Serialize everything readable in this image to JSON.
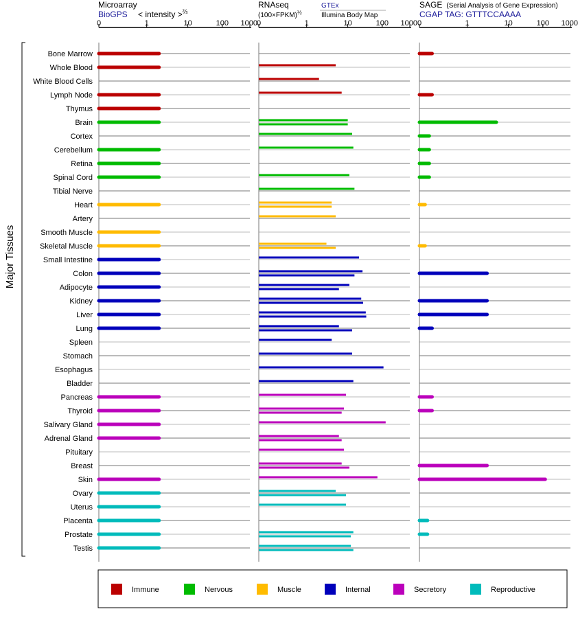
{
  "header": {
    "microarray": {
      "title": "Microarray",
      "source": "BioGPS",
      "scale_label": "< intensity >",
      "scale_exp": "⅔"
    },
    "rnaseq": {
      "title": "RNAseq",
      "unit": "(100×FPKM)",
      "unit_exp": "½",
      "source_a": "GTEx",
      "source_b": "Illumina Body Map"
    },
    "sage": {
      "title": "SAGE",
      "subtitle": "(Serial Analysis of Gene Expression)",
      "tag": "CGAP TAG: GTTTCCAAAA"
    }
  },
  "axis_ticks": [
    "0",
    "1",
    "10",
    "100",
    "1000"
  ],
  "y_group_label": "Major Tissues",
  "colors": {
    "Immune": "#bb0000",
    "Nervous": "#00bb00",
    "Muscle": "#ffbb00",
    "Internal": "#0000bb",
    "Secretory": "#bb00bb",
    "Reproductive": "#00bbbb"
  },
  "legend": [
    "Immune",
    "Nervous",
    "Muscle",
    "Internal",
    "Secretory",
    "Reproductive"
  ],
  "chart_data": {
    "type": "bar",
    "scale": "sqrt-log (0, 1, 10, 100, 1000)",
    "panels": [
      "Microarray",
      "RNAseq",
      "SAGE"
    ],
    "tissues": [
      {
        "name": "Bone Marrow",
        "system": "Immune",
        "microarray": 2,
        "rnaseq": [],
        "sage": 0.05
      },
      {
        "name": "Whole Blood",
        "system": "Immune",
        "microarray": 2,
        "rnaseq": [
          5
        ],
        "sage": null
      },
      {
        "name": "White Blood Cells",
        "system": "Immune",
        "microarray": null,
        "rnaseq": [
          2
        ],
        "sage": null
      },
      {
        "name": "Lymph Node",
        "system": "Immune",
        "microarray": 2,
        "rnaseq": [
          7
        ],
        "sage": 0.05
      },
      {
        "name": "Thymus",
        "system": "Immune",
        "microarray": 2,
        "rnaseq": [],
        "sage": null
      },
      {
        "name": "Brain",
        "system": "Nervous",
        "microarray": 2,
        "rnaseq": [
          10,
          10
        ],
        "sage": 5
      },
      {
        "name": "Cortex",
        "system": "Nervous",
        "microarray": null,
        "rnaseq": [
          13
        ],
        "sage": 0.03
      },
      {
        "name": "Cerebellum",
        "system": "Nervous",
        "microarray": 2,
        "rnaseq": [
          14
        ],
        "sage": 0.03
      },
      {
        "name": "Retina",
        "system": "Nervous",
        "microarray": 2,
        "rnaseq": [],
        "sage": 0.03
      },
      {
        "name": "Spinal Cord",
        "system": "Nervous",
        "microarray": 2,
        "rnaseq": [
          11
        ],
        "sage": 0.03
      },
      {
        "name": "Tibial Nerve",
        "system": "Nervous",
        "microarray": null,
        "rnaseq": [
          15
        ],
        "sage": null
      },
      {
        "name": "Heart",
        "system": "Muscle",
        "microarray": 2,
        "rnaseq": [
          4,
          4
        ],
        "sage": 0.01
      },
      {
        "name": "Artery",
        "system": "Muscle",
        "microarray": null,
        "rnaseq": [
          5
        ],
        "sage": null
      },
      {
        "name": "Smooth Muscle",
        "system": "Muscle",
        "microarray": 2,
        "rnaseq": [],
        "sage": null
      },
      {
        "name": "Skeletal Muscle",
        "system": "Muscle",
        "microarray": 2,
        "rnaseq": [
          3,
          5
        ],
        "sage": 0.01
      },
      {
        "name": "Small Intestine",
        "system": "Internal",
        "microarray": 2,
        "rnaseq": [
          20
        ],
        "sage": null
      },
      {
        "name": "Colon",
        "system": "Internal",
        "microarray": 2,
        "rnaseq": [
          25,
          15
        ],
        "sage": 3
      },
      {
        "name": "Adipocyte",
        "system": "Internal",
        "microarray": 2,
        "rnaseq": [
          11,
          6
        ],
        "sage": null
      },
      {
        "name": "Kidney",
        "system": "Internal",
        "microarray": 2,
        "rnaseq": [
          23,
          26
        ],
        "sage": 3
      },
      {
        "name": "Liver",
        "system": "Internal",
        "microarray": 2,
        "rnaseq": [
          31,
          32
        ],
        "sage": 3
      },
      {
        "name": "Lung",
        "system": "Internal",
        "microarray": 2,
        "rnaseq": [
          6,
          13
        ],
        "sage": 0.05
      },
      {
        "name": "Spleen",
        "system": "Internal",
        "microarray": null,
        "rnaseq": [
          4
        ],
        "sage": null
      },
      {
        "name": "Stomach",
        "system": "Internal",
        "microarray": null,
        "rnaseq": [
          13
        ],
        "sage": null
      },
      {
        "name": "Esophagus",
        "system": "Internal",
        "microarray": null,
        "rnaseq": [
          110
        ],
        "sage": null
      },
      {
        "name": "Bladder",
        "system": "Internal",
        "microarray": null,
        "rnaseq": [
          14
        ],
        "sage": null
      },
      {
        "name": "Pancreas",
        "system": "Secretory",
        "microarray": 2,
        "rnaseq": [
          9
        ],
        "sage": 0.05
      },
      {
        "name": "Thyroid",
        "system": "Secretory",
        "microarray": 2,
        "rnaseq": [
          8,
          7
        ],
        "sage": 0.05
      },
      {
        "name": "Salivary Gland",
        "system": "Secretory",
        "microarray": 2,
        "rnaseq": [
          130
        ],
        "sage": null
      },
      {
        "name": "Adrenal Gland",
        "system": "Secretory",
        "microarray": 2,
        "rnaseq": [
          6,
          7
        ],
        "sage": null
      },
      {
        "name": "Pituitary",
        "system": "Secretory",
        "microarray": null,
        "rnaseq": [
          8
        ],
        "sage": null
      },
      {
        "name": "Breast",
        "system": "Secretory",
        "microarray": null,
        "rnaseq": [
          7,
          11
        ],
        "sage": 3
      },
      {
        "name": "Skin",
        "system": "Secretory",
        "microarray": 2,
        "rnaseq": [
          70
        ],
        "sage": 120
      },
      {
        "name": "Ovary",
        "system": "Reproductive",
        "microarray": 2,
        "rnaseq": [
          5,
          9
        ],
        "sage": null
      },
      {
        "name": "Uterus",
        "system": "Reproductive",
        "microarray": 2,
        "rnaseq": [
          9
        ],
        "sage": null
      },
      {
        "name": "Placenta",
        "system": "Reproductive",
        "microarray": 2,
        "rnaseq": [],
        "sage": 0.02
      },
      {
        "name": "Prostate",
        "system": "Reproductive",
        "microarray": 2,
        "rnaseq": [
          14,
          12
        ],
        "sage": 0.02
      },
      {
        "name": "Testis",
        "system": "Reproductive",
        "microarray": 2,
        "rnaseq": [
          12,
          14
        ],
        "sage": null
      }
    ]
  }
}
